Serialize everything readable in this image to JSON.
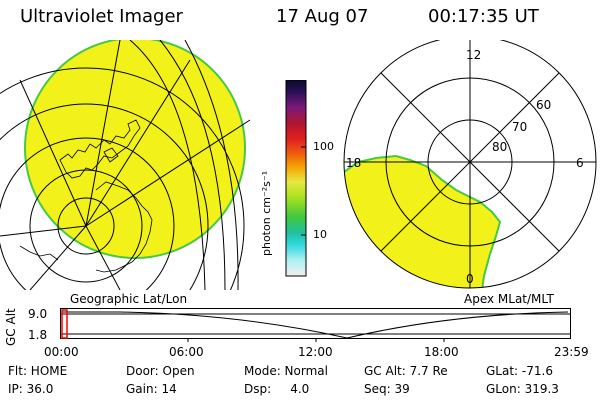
{
  "header": {
    "instrument": "Ultraviolet Imager",
    "date": "17 Aug 07",
    "time": "00:17:35 UT"
  },
  "colors": {
    "aurora_fill": "#f2f21a",
    "aurora_edge": "#45c845",
    "grid": "#000000"
  },
  "left_panel": {
    "label": "Geographic Lat/Lon"
  },
  "right_panel": {
    "label": "Apex MLat/MLT",
    "mlt_labels": {
      "top": "12",
      "left": "18",
      "right": "6",
      "bottom": "0"
    },
    "lat_labels": [
      "60",
      "70",
      "80"
    ]
  },
  "colorbar": {
    "unit_label": "photon cm⁻²s⁻¹",
    "tick_100": "100",
    "tick_10": "10",
    "stops": [
      "#0a0a30",
      "#2a1055",
      "#7a1a7a",
      "#b01530",
      "#e02020",
      "#f06010",
      "#f5a000",
      "#e8e840",
      "#a8e020",
      "#40c840",
      "#20c0a0",
      "#30d8e0",
      "#b0f0f0",
      "#f0f0f0"
    ]
  },
  "altitude_strip": {
    "axis_label": "GC Alt",
    "y_top": "9.0",
    "y_bottom": "1.8",
    "x_ticks": [
      "00:00",
      "06:00",
      "12:00",
      "18:00",
      "23:59"
    ],
    "cursor_color": "#ff0000"
  },
  "info": {
    "flt": "Flt: HOME",
    "ip": "IP: 36.0",
    "door": "Door: Open",
    "gain": "Gain: 14",
    "mode": "Mode: Normal",
    "dsp": "Dsp:     4.0",
    "gc_alt": "GC Alt: 7.7 Re",
    "seq": "Seq: 39",
    "glat": "GLat: -71.6",
    "glon": "GLon: 319.3"
  }
}
